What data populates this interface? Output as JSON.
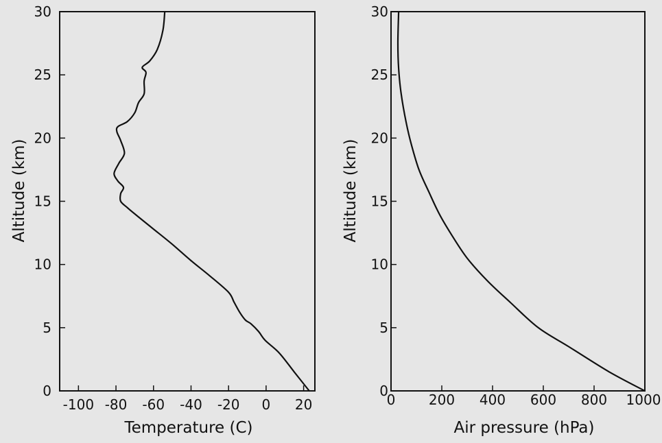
{
  "chart_data": [
    {
      "type": "line",
      "title": "",
      "xlabel": "Temperature (C)",
      "ylabel": "Altitude (km)",
      "xlim": [
        -110,
        26
      ],
      "ylim": [
        0,
        30
      ],
      "xticks": [
        -100,
        -80,
        -60,
        -40,
        -20,
        0,
        20
      ],
      "yticks": [
        0,
        5,
        10,
        15,
        20,
        25,
        30
      ],
      "grid": false,
      "legend": "none",
      "line_color": "#111111",
      "background_color": "#e6e6e6",
      "series": [
        {
          "x": [
            23,
            15,
            7,
            -0.5,
            -4,
            -8,
            -11,
            -14,
            -17,
            -20,
            -30,
            -40,
            -50,
            -60,
            -70,
            -74,
            -77.5,
            -77.5,
            -76,
            -79,
            -81,
            -78.5,
            -75.5,
            -77.5,
            -79.5,
            -79,
            -74,
            -70,
            -68,
            -65,
            -65,
            -64,
            -66,
            -62,
            -58,
            -55,
            -54
          ],
          "y": [
            0,
            1.5,
            3,
            4,
            4.7,
            5.3,
            5.6,
            6.2,
            7,
            7.8,
            9.1,
            10.3,
            11.6,
            12.8,
            14.0,
            14.5,
            15.0,
            15.6,
            16.1,
            16.6,
            17.2,
            18.0,
            18.8,
            19.8,
            20.5,
            20.9,
            21.3,
            22.0,
            22.8,
            23.5,
            24.5,
            25.2,
            25.6,
            26.1,
            27,
            28.5,
            30
          ]
        }
      ]
    },
    {
      "type": "line",
      "title": "",
      "xlabel": "Air pressure (hPa)",
      "ylabel": "Altitude (km)",
      "xlim": [
        0,
        1000
      ],
      "ylim": [
        0,
        30
      ],
      "xticks": [
        0,
        200,
        400,
        600,
        800,
        1000
      ],
      "yticks": [
        0,
        5,
        10,
        15,
        20,
        25,
        30
      ],
      "grid": false,
      "legend": "none",
      "line_color": "#111111",
      "background_color": "#e6e6e6",
      "series": [
        {
          "x": [
            1000,
            860,
            700,
            580,
            470,
            380,
            300,
            240,
            190,
            150,
            110,
            80,
            60,
            40,
            30,
            27,
            30
          ],
          "y": [
            0,
            1.5,
            3.5,
            5,
            7,
            8.7,
            10.5,
            12.3,
            14,
            15.7,
            17.5,
            19.5,
            21.2,
            23.5,
            25.5,
            27.5,
            30
          ]
        }
      ]
    }
  ]
}
